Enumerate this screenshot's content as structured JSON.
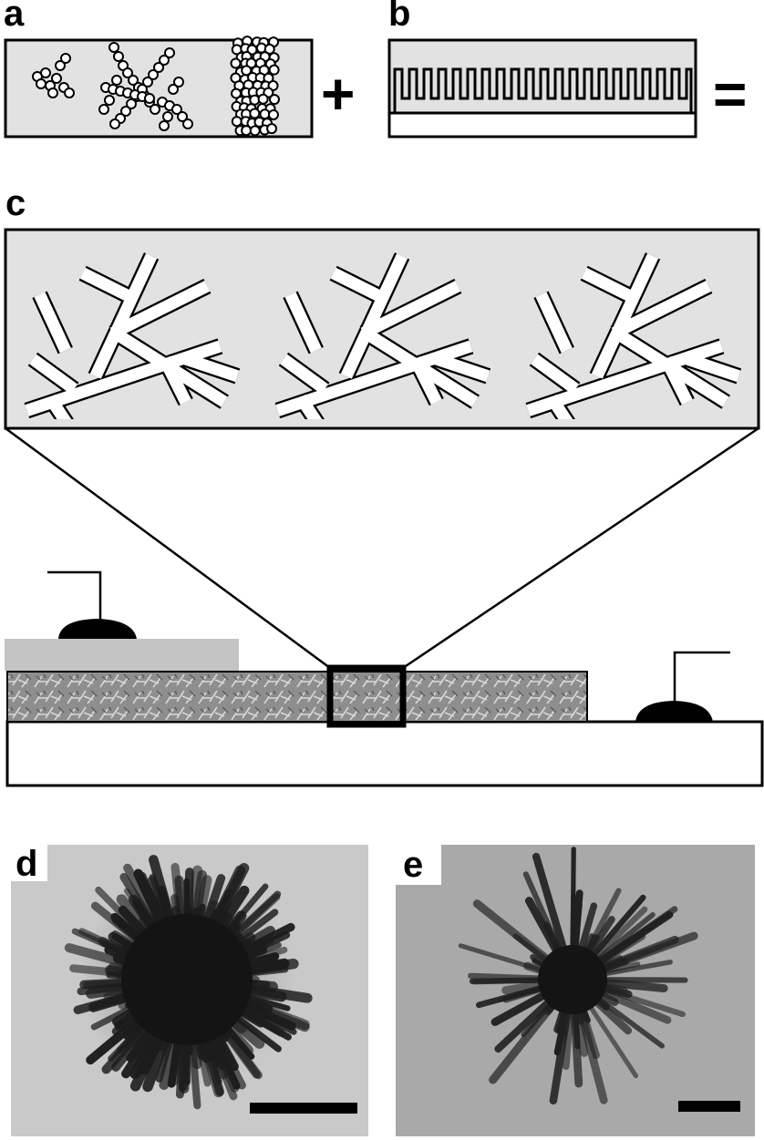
{
  "panels": {
    "a": {
      "label": "a"
    },
    "b": {
      "label": "b"
    },
    "c": {
      "label": "c"
    },
    "d": {
      "label": "d"
    },
    "e": {
      "label": "e"
    }
  },
  "operators": {
    "plus": "+",
    "equals": "="
  },
  "colors": {
    "panel_fill": "#e2e2e2",
    "stroke": "#000000",
    "film": "#8c8c8c",
    "electrode_strip": "#c4c4c4",
    "tem_background_d": "#c9c9c9",
    "tem_background_e": "#a9a9a9"
  }
}
